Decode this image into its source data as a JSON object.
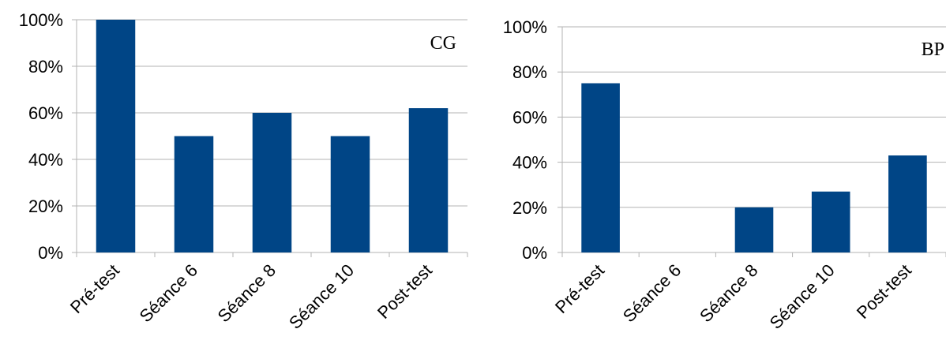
{
  "chart_data": [
    {
      "type": "bar",
      "title": "CG",
      "categories": [
        "Pré-test",
        "Séance 6",
        "Séance 8",
        "Séance 10",
        "Post-test"
      ],
      "values": [
        100,
        50,
        60,
        50,
        62
      ],
      "ylim": [
        0,
        100
      ],
      "yticks": [
        "0%",
        "20%",
        "40%",
        "60%",
        "80%",
        "100%"
      ],
      "grid": true,
      "bar_color": "#004586"
    },
    {
      "type": "bar",
      "title": "BP",
      "categories": [
        "Pré-test",
        "Séance 6",
        "Séance 8",
        "Séance 10",
        "Post-test"
      ],
      "values": [
        75,
        0,
        20,
        27,
        43
      ],
      "ylim": [
        0,
        100
      ],
      "yticks": [
        "0%",
        "20%",
        "40%",
        "60%",
        "80%",
        "100%"
      ],
      "grid": true,
      "bar_color": "#004586"
    }
  ]
}
